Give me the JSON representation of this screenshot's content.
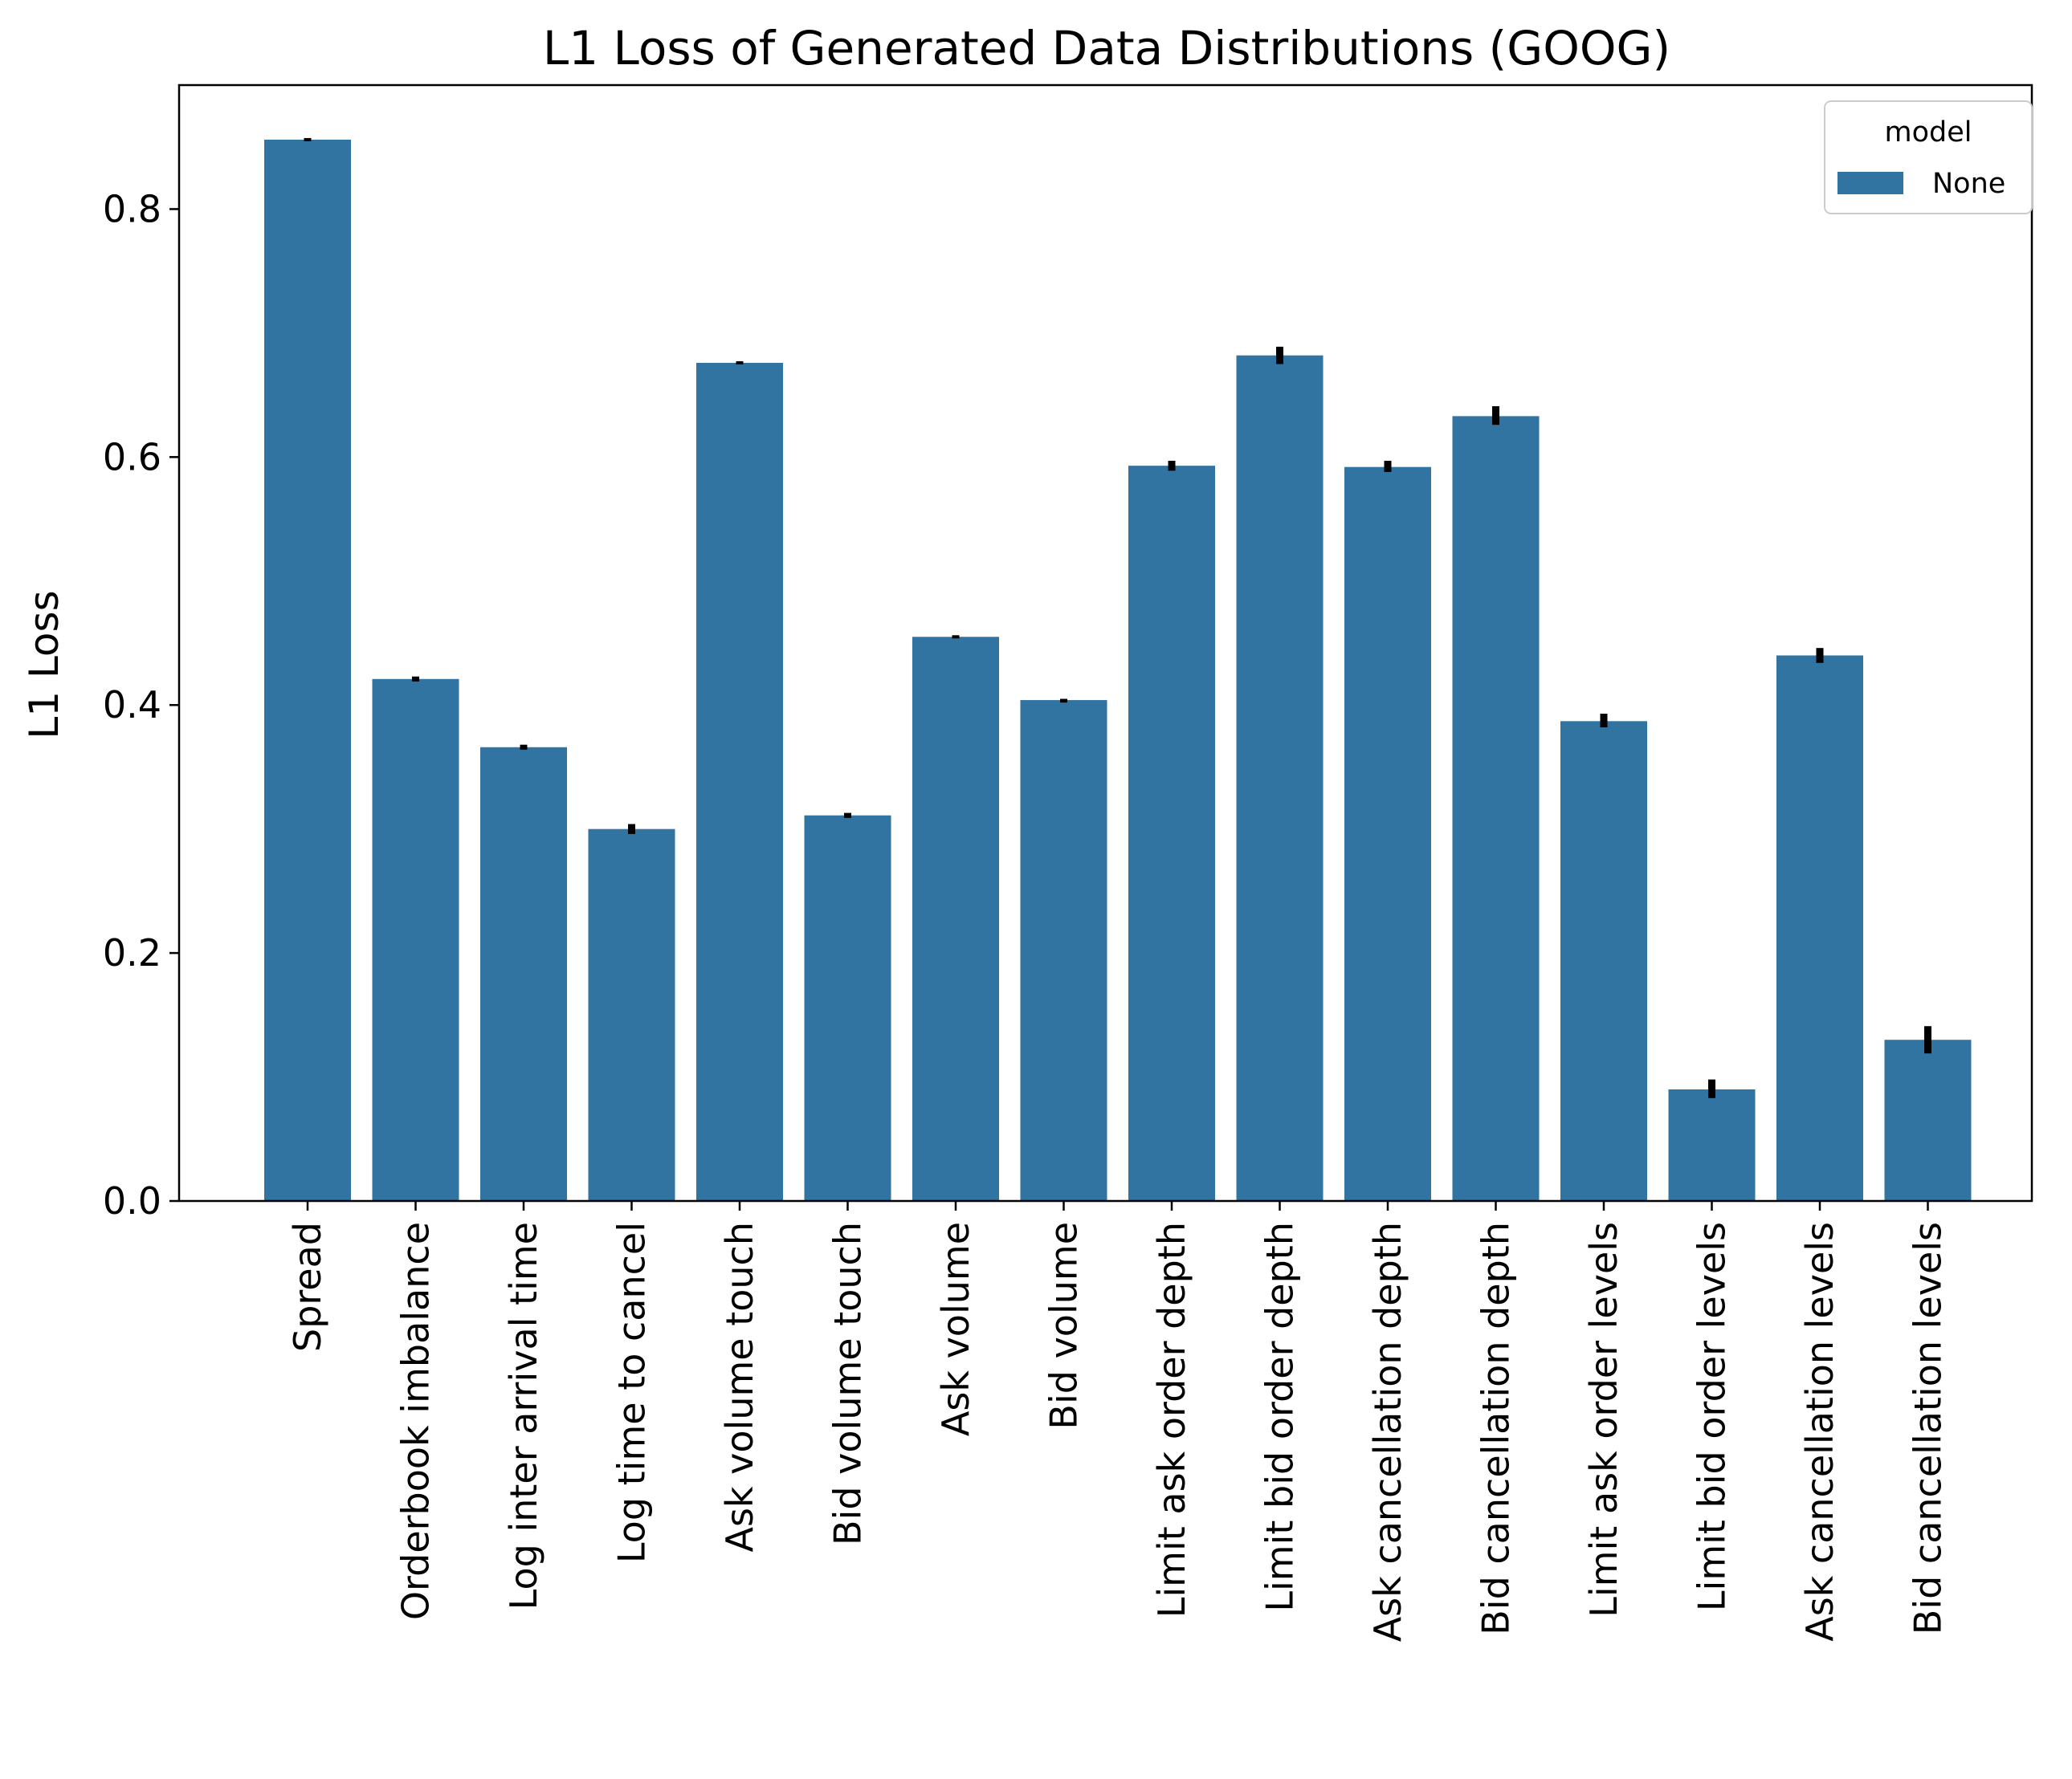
{
  "chart_data": {
    "type": "bar",
    "title": "L1 Loss of Generated Data Distributions (GOOG)",
    "xlabel": "",
    "ylabel": "L1 Loss",
    "ylim": [
      0,
      0.9
    ],
    "yticks": [
      "0.0",
      "0.2",
      "0.4",
      "0.6",
      "0.8"
    ],
    "grid": false,
    "legend": {
      "title": "model",
      "placement": "top-right",
      "entries": [
        "None"
      ]
    },
    "categories": [
      "Spread",
      "Orderbook imbalance",
      "Log inter arrival time",
      "Log time to cancel",
      "Ask volume touch",
      "Bid volume touch",
      "Ask volume",
      "Bid volume",
      "Limit ask order depth",
      "Limit bid order depth",
      "Ask cancellation depth",
      "Bid cancellation depth",
      "Limit ask order levels",
      "Limit bid order levels",
      "Ask cancellation levels",
      "Bid cancellation levels"
    ],
    "series": [
      {
        "name": "None",
        "color": "#3274a1",
        "values": [
          0.856,
          0.421,
          0.366,
          0.3,
          0.676,
          0.311,
          0.455,
          0.404,
          0.593,
          0.682,
          0.592,
          0.633,
          0.387,
          0.09,
          0.44,
          0.13
        ],
        "error_low": [
          0.855,
          0.419,
          0.364,
          0.296,
          0.675,
          0.309,
          0.454,
          0.402,
          0.589,
          0.675,
          0.588,
          0.626,
          0.382,
          0.083,
          0.434,
          0.119
        ],
        "error_high": [
          0.857,
          0.423,
          0.368,
          0.304,
          0.677,
          0.313,
          0.456,
          0.405,
          0.597,
          0.689,
          0.597,
          0.641,
          0.393,
          0.098,
          0.446,
          0.141
        ]
      }
    ],
    "error_color": "#000000"
  }
}
